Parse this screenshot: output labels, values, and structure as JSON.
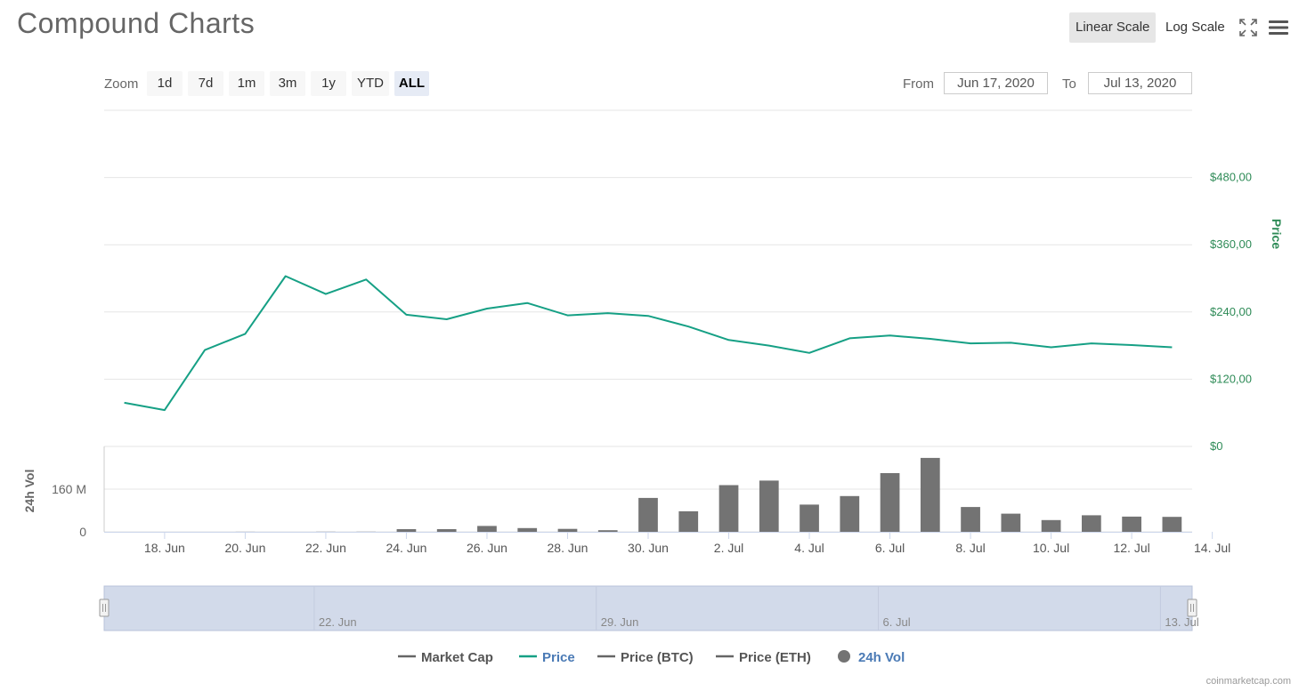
{
  "header": {
    "title": "Compound Charts",
    "linear_scale_label": "Linear Scale",
    "log_scale_label": "Log Scale",
    "fullscreen_icon": "fullscreen-icon",
    "menu_icon": "menu-icon"
  },
  "zoom": {
    "label": "Zoom",
    "buttons": [
      "1d",
      "7d",
      "1m",
      "3m",
      "1y",
      "YTD",
      "ALL"
    ],
    "active": "ALL"
  },
  "range": {
    "from_label": "From",
    "from_value": "Jun 17, 2020",
    "to_label": "To",
    "to_value": "Jul 13, 2020"
  },
  "colors": {
    "price": "#16a085",
    "price_axis": "#2e8b57",
    "volume": "#737373",
    "navigator_fill": "#d2daea",
    "legend_active": "#4a7ab5",
    "grid": "#e6e6e6"
  },
  "chart_data": {
    "type": "line",
    "x": [
      "2020-06-17",
      "2020-06-18",
      "2020-06-19",
      "2020-06-20",
      "2020-06-21",
      "2020-06-22",
      "2020-06-23",
      "2020-06-24",
      "2020-06-25",
      "2020-06-26",
      "2020-06-27",
      "2020-06-28",
      "2020-06-29",
      "2020-06-30",
      "2020-07-01",
      "2020-07-02",
      "2020-07-03",
      "2020-07-04",
      "2020-07-05",
      "2020-07-06",
      "2020-07-07",
      "2020-07-08",
      "2020-07-09",
      "2020-07-10",
      "2020-07-11",
      "2020-07-12",
      "2020-07-13"
    ],
    "series": [
      {
        "name": "Price",
        "axis": "price",
        "values": [
          78,
          65,
          172,
          201,
          304,
          272,
          298,
          235,
          227,
          246,
          256,
          234,
          238,
          233,
          214,
          190,
          180,
          167,
          193,
          198,
          192,
          184,
          185,
          177,
          184,
          181,
          177
        ]
      },
      {
        "name": "24h Vol",
        "axis": "volume",
        "type": "bar",
        "values": [
          0,
          0,
          0,
          0.3,
          0,
          0.5,
          0.5,
          10,
          10,
          22,
          14,
          11,
          6,
          127,
          77,
          175,
          192,
          102,
          134,
          220,
          277,
          93,
          68,
          44,
          62,
          57,
          56
        ]
      }
    ],
    "price_axis": {
      "label": "Price",
      "ticks": [
        "$0",
        "$120,00",
        "$240,00",
        "$360,00",
        "$480,00"
      ],
      "tick_values": [
        0,
        120,
        240,
        360,
        480
      ],
      "range": [
        0,
        600
      ]
    },
    "volume_axis": {
      "label": "24h Vol",
      "ticks": [
        "0",
        "160 M"
      ],
      "tick_values": [
        0,
        160
      ],
      "range": [
        0,
        320
      ]
    },
    "x_ticks": [
      "18. Jun",
      "20. Jun",
      "22. Jun",
      "24. Jun",
      "26. Jun",
      "28. Jun",
      "30. Jun",
      "2. Jul",
      "4. Jul",
      "6. Jul",
      "8. Jul",
      "10. Jul",
      "12. Jul",
      "14. Jul"
    ],
    "x_tick_dates": [
      "2020-06-18",
      "2020-06-20",
      "2020-06-22",
      "2020-06-24",
      "2020-06-26",
      "2020-06-28",
      "2020-06-30",
      "2020-07-02",
      "2020-07-04",
      "2020-07-06",
      "2020-07-08",
      "2020-07-10",
      "2020-07-12",
      "2020-07-14"
    ],
    "navigator_ticks": [
      "22. Jun",
      "29. Jun",
      "6. Jul",
      "13. Jul"
    ],
    "navigator_tick_dates": [
      "2020-06-22",
      "2020-06-29",
      "2020-07-06",
      "2020-07-13"
    ],
    "legend": [
      {
        "label": "Market Cap",
        "marker": "line",
        "active": false
      },
      {
        "label": "Price",
        "marker": "line",
        "active": true
      },
      {
        "label": "Price (BTC)",
        "marker": "line",
        "active": false
      },
      {
        "label": "Price (ETH)",
        "marker": "line",
        "active": false
      },
      {
        "label": "24h Vol",
        "marker": "circle",
        "active": true
      }
    ],
    "legend_placement": "bottom-center",
    "grid": true
  },
  "credit": "coinmarketcap.com"
}
